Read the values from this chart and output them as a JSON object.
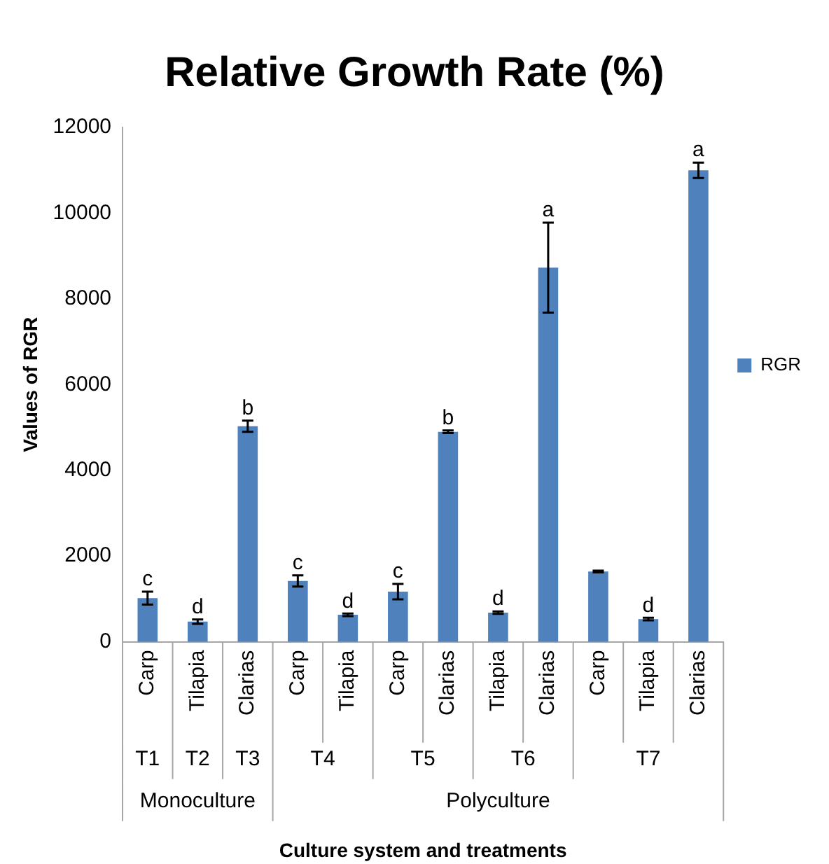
{
  "chart_data": {
    "type": "bar",
    "title": "Relative Growth Rate (%)",
    "ylabel": "Values of RGR",
    "categories": [
      "Carp",
      "Tilapia",
      "Clarias",
      "Carp",
      "Tilapia",
      "Carp",
      "Clarias",
      "Tilapia",
      "Clarias",
      "Carp",
      "Tilapia",
      "Clarias"
    ],
    "series": [
      {
        "name": "RGR",
        "color": "#4f81bd",
        "values": [
          1020,
          470,
          5030,
          1420,
          630,
          1170,
          4900,
          680,
          8730,
          1640,
          530,
          11000
        ],
        "errors": [
          150,
          50,
          130,
          130,
          30,
          180,
          30,
          30,
          1050,
          20,
          30,
          180
        ],
        "value_labels": [
          "c",
          "d",
          "b",
          "c",
          "d",
          "c",
          "b",
          "d",
          "a",
          null,
          "d",
          "a"
        ]
      }
    ],
    "annotations": [
      "T1",
      "T2",
      "T3",
      "T4",
      "T5",
      "T6",
      "T7",
      "Monoculture",
      "Polyculture",
      "Culture system and treatments"
    ],
    "ylim": [
      0,
      12000
    ],
    "yticks": [
      0,
      2000,
      4000,
      6000,
      8000,
      10000,
      12000
    ],
    "grid": false,
    "legend": "right"
  }
}
